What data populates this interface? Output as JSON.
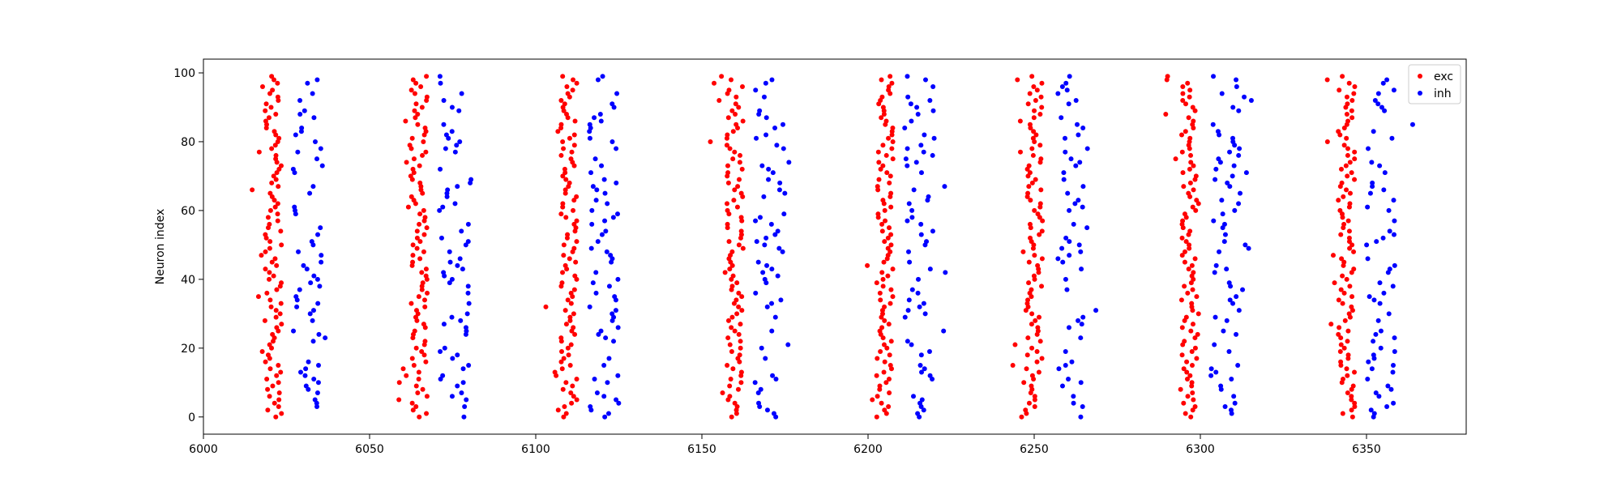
{
  "chart_data": {
    "type": "scatter",
    "title": "",
    "xlabel": "",
    "ylabel": "Neuron index",
    "xlim": [
      6000,
      6380
    ],
    "ylim": [
      -5,
      104
    ],
    "xticks": [
      6000,
      6050,
      6100,
      6150,
      6200,
      6250,
      6300,
      6350
    ],
    "yticks": [
      0,
      20,
      40,
      60,
      80,
      100
    ],
    "grid": false,
    "legend": "top-right",
    "burst_centers": [
      6021,
      6065,
      6110,
      6160,
      6205,
      6250,
      6297,
      6344
    ],
    "series": [
      {
        "name": "exc",
        "color": "#ff0000"
      },
      {
        "name": "inh",
        "color": "#0000ff"
      }
    ]
  }
}
